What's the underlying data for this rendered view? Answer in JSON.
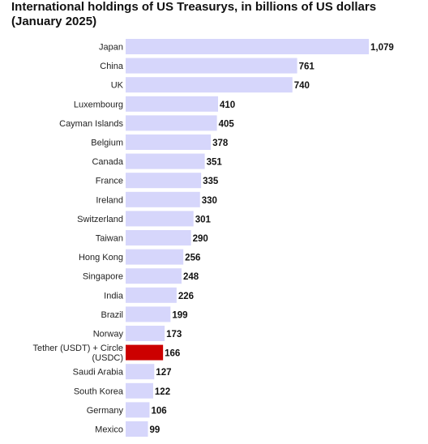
{
  "title_line1": "International holdings of US Treasurys, in billions of US dollars",
  "title_line2": "(January 2025)",
  "colors": {
    "bar": "#d6d6fb",
    "highlight": "#cc0000"
  },
  "chart_data": {
    "type": "bar",
    "orientation": "horizontal",
    "title": "International holdings of US Treasurys, in billions of US dollars (January 2025)",
    "categories": [
      "Japan",
      "China",
      "UK",
      "Luxembourg",
      "Cayman Islands",
      "Belgium",
      "Canada",
      "France",
      "Ireland",
      "Switzerland",
      "Taiwan",
      "Hong Kong",
      "Singapore",
      "India",
      "Brazil",
      "Norway",
      "Tether (USDT) + Circle (USDC)",
      "Saudi Arabia",
      "South Korea",
      "Germany",
      "Mexico"
    ],
    "values": [
      1079,
      761,
      740,
      410,
      405,
      378,
      351,
      335,
      330,
      301,
      290,
      256,
      248,
      226,
      199,
      173,
      166,
      127,
      122,
      106,
      99
    ],
    "value_labels": [
      "1,079",
      "761",
      "740",
      "410",
      "405",
      "378",
      "351",
      "335",
      "330",
      "301",
      "290",
      "256",
      "248",
      "226",
      "199",
      "173",
      "166",
      "127",
      "122",
      "106",
      "99"
    ],
    "highlight_category": "Tether (USDT) + Circle (USDC)",
    "xlim": [
      0,
      1079
    ],
    "grid": false,
    "legend": "none"
  }
}
